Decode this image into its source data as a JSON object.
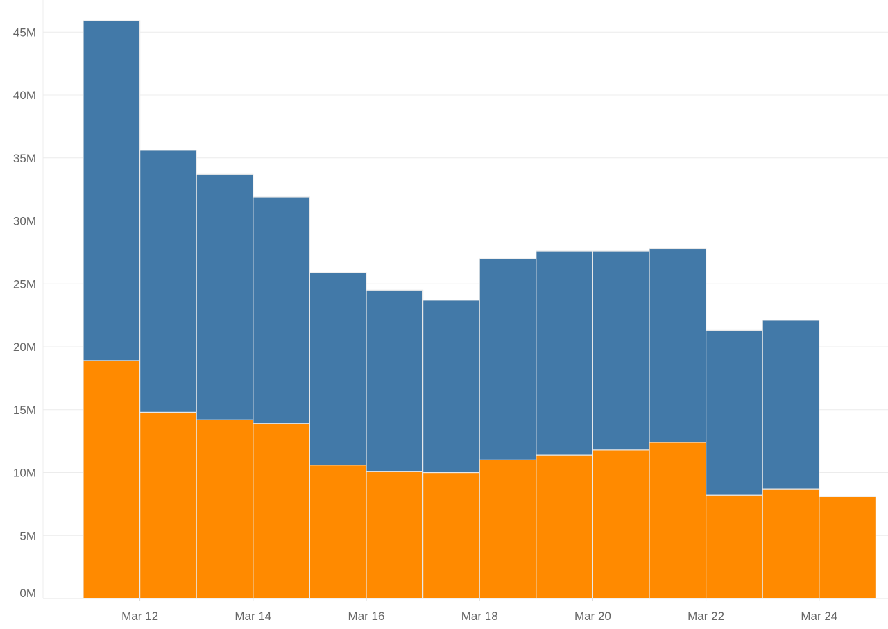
{
  "chart_data": {
    "type": "bar",
    "stacked": true,
    "title": "",
    "xlabel": "",
    "ylabel": "",
    "categories": [
      "Mar 11",
      "Mar 12",
      "Mar 13",
      "Mar 14",
      "Mar 15",
      "Mar 16",
      "Mar 17",
      "Mar 18",
      "Mar 19",
      "Mar 20",
      "Mar 21",
      "Mar 22",
      "Mar 23",
      "Mar 24"
    ],
    "x_tick_labels": [
      "Mar 12",
      "Mar 14",
      "Mar 16",
      "Mar 18",
      "Mar 20",
      "Mar 22",
      "Mar 24"
    ],
    "y_tick_labels": [
      "0M",
      "5M",
      "10M",
      "15M",
      "20M",
      "25M",
      "30M",
      "35M",
      "40M",
      "45M"
    ],
    "ylim": [
      0,
      47000000
    ],
    "grid": true,
    "legend": "none",
    "series": [
      {
        "color": "#FF8A00",
        "values": [
          18900000,
          14800000,
          14200000,
          13900000,
          10600000,
          10100000,
          10000000,
          11000000,
          11400000,
          11800000,
          12400000,
          8200000,
          8700000,
          8100000
        ]
      },
      {
        "color": "#4279A8",
        "values": [
          27000000,
          20800000,
          19500000,
          18000000,
          15300000,
          14400000,
          13700000,
          16000000,
          16200000,
          15800000,
          15400000,
          13100000,
          13400000,
          0
        ]
      }
    ]
  }
}
